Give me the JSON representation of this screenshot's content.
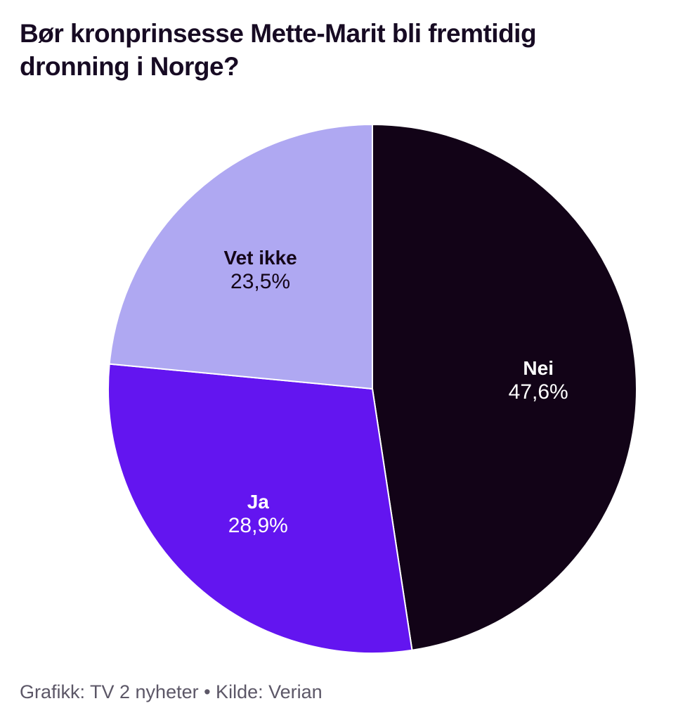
{
  "header": {
    "title_lines": [
      "Bør kronprinsesse Mette-Marit bli fremtidig",
      "dronning i Norge?"
    ]
  },
  "chart_data": {
    "type": "pie",
    "title": "Bør kronprinsesse Mette-Marit bli fremtidig dronning i Norge?",
    "start_angle_deg": 0,
    "direction": "clockwise",
    "total": 100,
    "slices": [
      {
        "label": "Nei",
        "value": 47.6,
        "display": "47,6%",
        "color": "#120317",
        "text_color": "#ffffff"
      },
      {
        "label": "Ja",
        "value": 28.9,
        "display": "28,9%",
        "color": "#6315f0",
        "text_color": "#ffffff"
      },
      {
        "label": "Vet ikke",
        "value": 23.5,
        "display": "23,5%",
        "color": "#afa8f2",
        "text_color": "#140518"
      }
    ],
    "legend_position": "none",
    "labels_inside": true
  },
  "footer": {
    "text": "Grafikk: TV 2 nyheter • Kilde: Verian"
  },
  "colors": {
    "background": "#ffffff",
    "title_text": "#170b23",
    "footer_text": "#5c5767",
    "slice_border": "#ffffff"
  }
}
